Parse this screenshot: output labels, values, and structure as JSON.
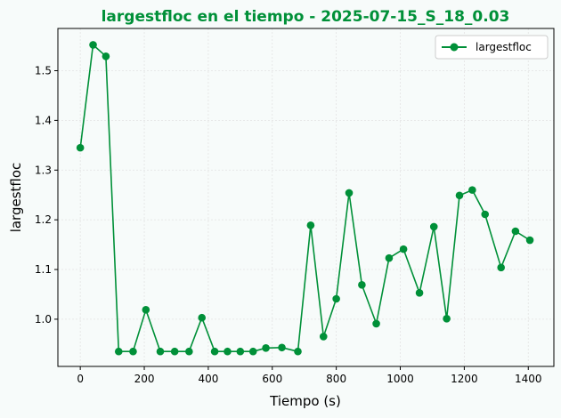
{
  "chart_data": {
    "type": "line",
    "title": "largestfloc en el tiempo - 2025-07-15_S_18_0.03",
    "xlabel": "Tiempo (s)",
    "ylabel": "largestfloc",
    "xlim": [
      -70,
      1480
    ],
    "ylim": [
      0.905,
      1.585
    ],
    "xticks": [
      0,
      200,
      400,
      600,
      800,
      1000,
      1200,
      1400
    ],
    "yticks": [
      1.0,
      1.1,
      1.2,
      1.3,
      1.4,
      1.5
    ],
    "ytick_labels": [
      "1.0",
      "1.1",
      "1.2",
      "1.3",
      "1.4",
      "1.5"
    ],
    "grid": true,
    "legend_position": "top-right",
    "series": [
      {
        "name": "largestfloc",
        "color": "#009038",
        "marker": "circle",
        "x": [
          0,
          40,
          80,
          120,
          165,
          205,
          250,
          295,
          340,
          380,
          420,
          460,
          500,
          540,
          580,
          630,
          680,
          720,
          760,
          800,
          840,
          880,
          925,
          965,
          1010,
          1060,
          1105,
          1145,
          1185,
          1225,
          1265,
          1315,
          1360,
          1405
        ],
        "y": [
          1.345,
          1.552,
          1.529,
          0.935,
          0.935,
          1.019,
          0.935,
          0.935,
          0.935,
          1.003,
          0.935,
          0.935,
          0.935,
          0.935,
          0.942,
          0.943,
          0.935,
          1.189,
          0.965,
          1.041,
          1.254,
          1.069,
          0.991,
          1.123,
          1.141,
          1.053,
          1.186,
          1.001,
          1.249,
          1.26,
          1.211,
          1.104,
          1.177,
          1.159
        ]
      }
    ]
  }
}
